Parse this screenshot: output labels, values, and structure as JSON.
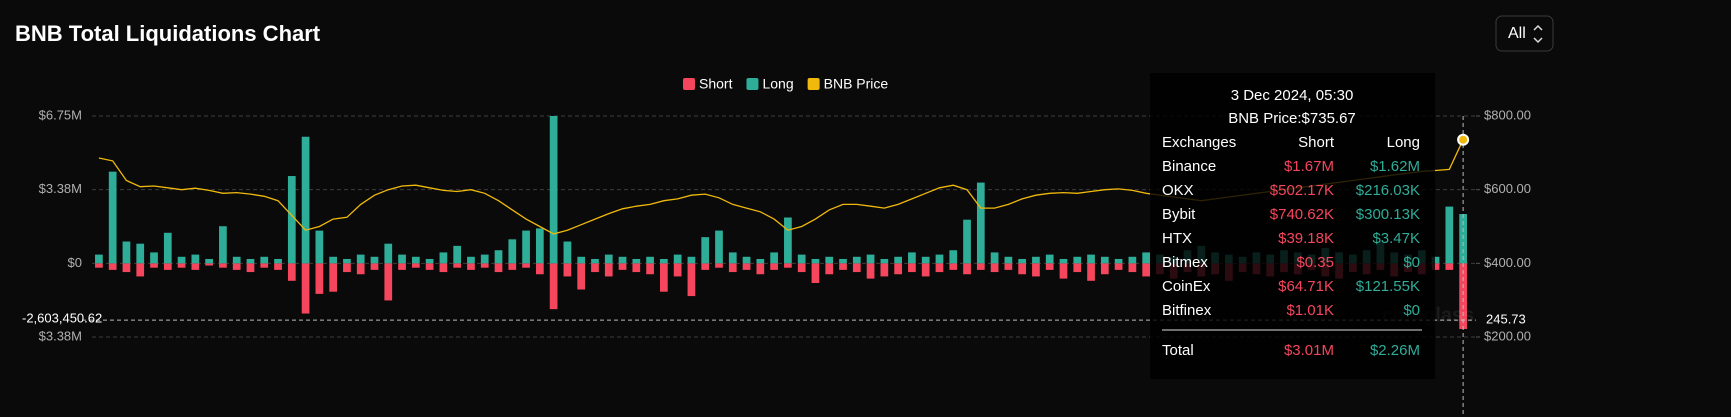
{
  "header": {
    "title": "BNB Total Liquidations Chart",
    "range_button": "All"
  },
  "chart_data": {
    "type": "bar",
    "legend": "top",
    "grid": true,
    "series": [
      {
        "name": "Short",
        "color": "#f6465d",
        "values": [
          -0.2,
          -0.3,
          -0.4,
          -0.6,
          -0.2,
          -0.3,
          -0.2,
          -0.3,
          -0.1,
          -0.2,
          -0.3,
          -0.4,
          -0.2,
          -0.3,
          -0.8,
          -2.3,
          -1.4,
          -1.3,
          -0.4,
          -0.5,
          -0.3,
          -1.7,
          -0.3,
          -0.2,
          -0.3,
          -0.4,
          -0.2,
          -0.3,
          -0.2,
          -0.4,
          -0.3,
          -0.2,
          -0.5,
          -2.1,
          -0.6,
          -1.2,
          -0.4,
          -0.6,
          -0.3,
          -0.4,
          -0.5,
          -1.3,
          -0.6,
          -1.5,
          -0.3,
          -0.2,
          -0.4,
          -0.3,
          -0.5,
          -0.3,
          -0.2,
          -0.4,
          -0.9,
          -0.5,
          -0.3,
          -0.4,
          -0.7,
          -0.6,
          -0.5,
          -0.4,
          -0.6,
          -0.4,
          -0.3,
          -0.5,
          -0.3,
          -0.4,
          -0.3,
          -0.5,
          -0.6,
          -0.3,
          -0.7,
          -0.4,
          -0.8,
          -0.5,
          -0.3,
          -0.4,
          -0.6,
          -0.5,
          -0.7,
          -0.4,
          -0.6,
          -0.5,
          -0.8,
          -0.4,
          -0.5,
          -0.6,
          -0.4,
          -0.5,
          -0.3,
          -0.6,
          -0.7,
          -0.4,
          -0.5,
          -0.3,
          -0.6,
          -0.4,
          -0.5,
          -0.3,
          -0.3,
          -3.01
        ]
      },
      {
        "name": "Long",
        "color": "#2ead98",
        "values": [
          0.4,
          4.2,
          1.0,
          0.9,
          0.5,
          1.4,
          0.3,
          0.4,
          0.2,
          1.7,
          0.3,
          0.2,
          0.3,
          0.2,
          4.0,
          5.8,
          1.5,
          0.3,
          0.2,
          0.4,
          0.3,
          0.9,
          0.4,
          0.3,
          0.2,
          0.5,
          0.8,
          0.3,
          0.4,
          0.6,
          1.1,
          1.5,
          1.6,
          6.75,
          1.0,
          0.3,
          0.2,
          0.4,
          0.3,
          0.2,
          0.3,
          0.2,
          0.4,
          0.3,
          1.2,
          1.5,
          0.5,
          0.3,
          0.2,
          0.5,
          2.1,
          0.4,
          0.2,
          0.3,
          0.2,
          0.3,
          0.4,
          0.2,
          0.3,
          0.5,
          0.3,
          0.4,
          0.6,
          2.0,
          3.7,
          0.5,
          0.3,
          0.2,
          0.3,
          0.4,
          0.2,
          0.3,
          0.4,
          0.3,
          0.2,
          0.3,
          0.5,
          0.4,
          0.3,
          0.6,
          0.8,
          0.5,
          0.4,
          0.3,
          0.5,
          0.4,
          0.6,
          0.5,
          0.4,
          0.7,
          0.5,
          0.4,
          0.6,
          1.0,
          0.5,
          0.4,
          0.6,
          0.3,
          2.6,
          2.26
        ]
      },
      {
        "name": "BNB Price",
        "type": "line",
        "axis": "y2",
        "color": "#f0b90b",
        "values": [
          686,
          678,
          625,
          608,
          610,
          605,
          600,
          604,
          598,
          590,
          592,
          588,
          582,
          570,
          530,
          490,
          500,
          520,
          525,
          560,
          585,
          600,
          610,
          612,
          605,
          598,
          595,
          600,
          590,
          570,
          545,
          520,
          500,
          480,
          490,
          505,
          520,
          535,
          548,
          555,
          560,
          570,
          575,
          585,
          588,
          578,
          560,
          550,
          540,
          520,
          490,
          500,
          520,
          545,
          560,
          560,
          555,
          550,
          560,
          575,
          590,
          605,
          612,
          600,
          550,
          550,
          560,
          575,
          585,
          590,
          592,
          590,
          595,
          600,
          602,
          598,
          590,
          585,
          580,
          575,
          570,
          575,
          580,
          585,
          590,
          595,
          600,
          605,
          610,
          615,
          620,
          625,
          630,
          635,
          640,
          645,
          650,
          652,
          655,
          735.67
        ]
      }
    ],
    "ylim": [
      -3.375,
      6.75
    ],
    "yticks": [
      {
        "value": 6.75,
        "label": "$6.75M"
      },
      {
        "value": 3.375,
        "label": "$3.38M"
      },
      {
        "value": 0,
        "label": "$0"
      },
      {
        "value": -3.375,
        "label": "$3.38M"
      }
    ],
    "y2lim": [
      200,
      800
    ],
    "y2ticks": [
      {
        "value": 800,
        "label": "$800.00"
      },
      {
        "value": 600,
        "label": "$600.00"
      },
      {
        "value": 400,
        "label": "$400.00"
      },
      {
        "value": 200,
        "label": "$200.00"
      }
    ],
    "crosshair": {
      "y": {
        "value": -2.60345062,
        "label": "-2,603,450.62"
      },
      "y2": 245.73
    }
  },
  "tooltip": {
    "date": "3 Dec 2024, 05:30",
    "price": "BNB Price:$735.67",
    "columns": [
      "Exchanges",
      "Short",
      "Long"
    ],
    "rows": [
      [
        "Binance",
        "$1.67M",
        "$1.62M"
      ],
      [
        "OKX",
        "$502.17K",
        "$216.03K"
      ],
      [
        "Bybit",
        "$740.62K",
        "$300.13K"
      ],
      [
        "HTX",
        "$39.18K",
        "$3.47K"
      ],
      [
        "Bitmex",
        "$0.35",
        "$0"
      ],
      [
        "CoinEx",
        "$64.71K",
        "$121.55K"
      ],
      [
        "Bitfinex",
        "$1.01K",
        "$0"
      ]
    ],
    "total": [
      "Total",
      "$3.01M",
      "$2.26M"
    ]
  },
  "watermark": "coinglass"
}
